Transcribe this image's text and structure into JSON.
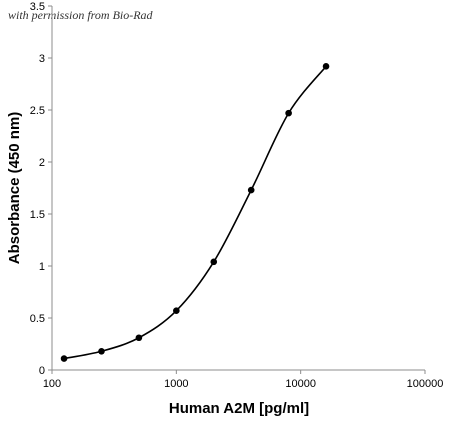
{
  "watermark": "with permission from Bio-Rad",
  "chart_data": {
    "type": "scatter",
    "title": "",
    "xlabel": "Human A2M [pg/ml]",
    "ylabel": "Absorbance (450 nm)",
    "x_scale": "log",
    "xlim": [
      100,
      100000
    ],
    "ylim": [
      0,
      3.5
    ],
    "x_ticks": [
      "100",
      "1000",
      "10000",
      "100000"
    ],
    "y_ticks": [
      "0",
      "0.5",
      "1",
      "1.5",
      "2",
      "2.5",
      "3",
      "3.5"
    ],
    "grid": false,
    "legend": "none",
    "series": [
      {
        "x": [
          125,
          250,
          500,
          1000,
          2000,
          4000,
          8000,
          16000
        ],
        "y": [
          0.11,
          0.18,
          0.31,
          0.57,
          1.04,
          1.73,
          2.47,
          2.92
        ],
        "marker": "circle",
        "line": "smooth",
        "color": "#000000"
      }
    ]
  }
}
